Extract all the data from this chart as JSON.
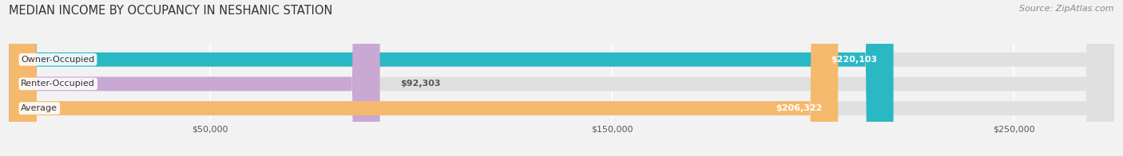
{
  "title": "MEDIAN INCOME BY OCCUPANCY IN NESHANIC STATION",
  "source": "Source: ZipAtlas.com",
  "categories": [
    "Owner-Occupied",
    "Renter-Occupied",
    "Average"
  ],
  "values": [
    220103,
    92303,
    206322
  ],
  "bar_colors": [
    "#2ab8c5",
    "#c9a8d4",
    "#f5b96e"
  ],
  "value_labels": [
    "$220,103",
    "$92,303",
    "$206,322"
  ],
  "xmax": 275000,
  "xticks": [
    0,
    50000,
    150000,
    250000
  ],
  "xticklabels": [
    "",
    "$50,000",
    "$150,000",
    "$250,000"
  ],
  "bg_color": "#f2f2f2",
  "bar_bg_color": "#e0e0e0",
  "title_fontsize": 10.5,
  "source_fontsize": 8
}
